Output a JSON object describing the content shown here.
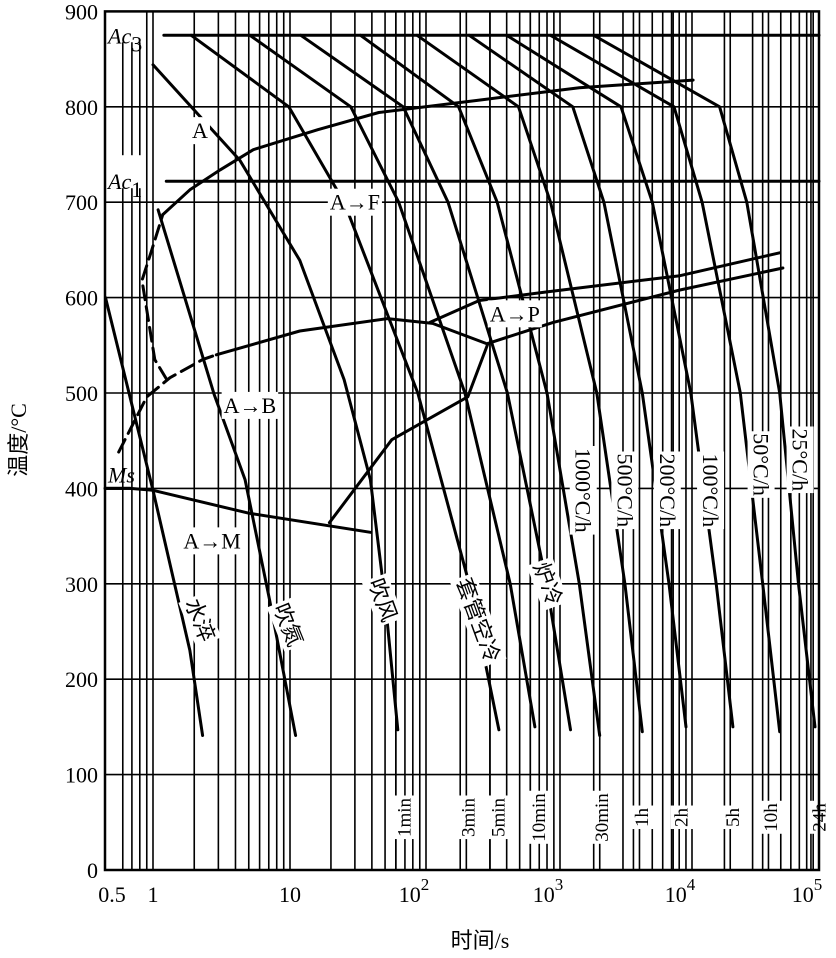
{
  "chart_data": {
    "type": "line",
    "title": "",
    "xlabel": "时间/s",
    "ylabel": "温度/°C",
    "xscale": "log",
    "xlim": [
      0.45,
      100000
    ],
    "ylim": [
      0,
      900
    ],
    "grid": true,
    "xticks": [
      {
        "value": 0.5,
        "label": "0.5",
        "sup": ""
      },
      {
        "value": 1,
        "label": "1",
        "sup": ""
      },
      {
        "value": 10,
        "label": "10",
        "sup": ""
      },
      {
        "value": 100,
        "label": "10",
        "sup": "2"
      },
      {
        "value": 1000,
        "label": "10",
        "sup": "3"
      },
      {
        "value": 10000,
        "label": "10",
        "sup": "4"
      },
      {
        "value": 100000,
        "label": "10",
        "sup": "5"
      }
    ],
    "yticks": [
      {
        "value": 0,
        "label": "0"
      },
      {
        "value": 100,
        "label": "100"
      },
      {
        "value": 200,
        "label": "200"
      },
      {
        "value": 300,
        "label": "300"
      },
      {
        "value": 400,
        "label": "400"
      },
      {
        "value": 500,
        "label": "500"
      },
      {
        "value": 600,
        "label": "600"
      },
      {
        "value": 700,
        "label": "700"
      },
      {
        "value": 800,
        "label": "800"
      },
      {
        "value": 900,
        "label": "900"
      }
    ],
    "time_markers": [
      {
        "value": 60,
        "label": "1min"
      },
      {
        "value": 180,
        "label": "3min"
      },
      {
        "value": 300,
        "label": "5min"
      },
      {
        "value": 600,
        "label": "10min"
      },
      {
        "value": 1800,
        "label": "30min"
      },
      {
        "value": 3600,
        "label": "1h"
      },
      {
        "value": 7200,
        "label": "2h"
      },
      {
        "value": 18000,
        "label": "5h"
      },
      {
        "value": 36000,
        "label": "10h"
      },
      {
        "value": 86400,
        "label": "24h"
      }
    ],
    "critical_temps": [
      {
        "name": "Ac3",
        "main": "Ac",
        "sub": "3",
        "value": 875,
        "from": 1.2
      },
      {
        "name": "Ac1",
        "main": "Ac",
        "sub": "1",
        "value": 722,
        "from": 1.25
      },
      {
        "name": "Ms",
        "main": "Ms",
        "sub": "",
        "value": 400,
        "from": 0.45
      }
    ],
    "cooling_curves": [
      {
        "name": "water-quench",
        "label": "水淬",
        "label_at": [
          2.2,
          262
        ],
        "rot": 68,
        "points": [
          [
            0.45,
            600
          ],
          [
            1,
            398
          ],
          [
            1.86,
            230
          ],
          [
            2.3,
            141
          ]
        ]
      },
      {
        "name": "nitrogen-blow",
        "label": "吹氮",
        "label_at": [
          9.7,
          257
        ],
        "rot": 68,
        "points": [
          [
            1.09,
            692
          ],
          [
            2.8,
            498
          ],
          [
            4.7,
            409
          ],
          [
            7.1,
            283
          ],
          [
            11,
            141
          ]
        ]
      },
      {
        "name": "air-blow",
        "label": "吹风",
        "label_at": [
          48,
          283
        ],
        "rot": 70,
        "points": [
          [
            1,
            844
          ],
          [
            4.3,
            744
          ],
          [
            11.8,
            639
          ],
          [
            25,
            514
          ],
          [
            39,
            409
          ],
          [
            50,
            283
          ],
          [
            62,
            147
          ]
        ]
      },
      {
        "name": "sleeve-air-cool",
        "label": "套管空冷",
        "label_at": [
          245,
          262
        ],
        "rot": 70,
        "points": [
          [
            1.9,
            875
          ],
          [
            9.8,
            800
          ],
          [
            25,
            700
          ],
          [
            87,
            500
          ],
          [
            210,
            300
          ],
          [
            350,
            147
          ]
        ]
      },
      {
        "name": "curve-unlabeled",
        "label": "",
        "label_at": null,
        "rot": 0,
        "points": [
          [
            5.1,
            875
          ],
          [
            28,
            800
          ],
          [
            63,
            700
          ],
          [
            195,
            500
          ],
          [
            425,
            300
          ],
          [
            650,
            150
          ]
        ]
      },
      {
        "name": "furnace-cool",
        "label": "炉冷",
        "label_at": [
          810,
          300
        ],
        "rot": 70,
        "points": [
          [
            12,
            875
          ],
          [
            68,
            800
          ],
          [
            146,
            700
          ],
          [
            405,
            500
          ],
          [
            795,
            300
          ],
          [
            1200,
            147
          ]
        ]
      },
      {
        "name": "rate-1000",
        "label": "1000°C/h",
        "label_at": [
          1500,
          398
        ],
        "rot": 90,
        "points": [
          [
            33,
            875
          ],
          [
            175,
            800
          ],
          [
            340,
            700
          ],
          [
            800,
            500
          ],
          [
            1400,
            300
          ],
          [
            2000,
            141
          ]
        ]
      },
      {
        "name": "rate-500",
        "label": "500°C/h",
        "label_at": [
          3100,
          398
        ],
        "rot": 90,
        "points": [
          [
            86,
            875
          ],
          [
            490,
            800
          ],
          [
            850,
            700
          ],
          [
            1900,
            500
          ],
          [
            3100,
            300
          ],
          [
            4200,
            145
          ]
        ]
      },
      {
        "name": "rate-200",
        "label": "200°C/h",
        "label_at": [
          6500,
          398
        ],
        "rot": 90,
        "points": [
          [
            210,
            875
          ],
          [
            1250,
            800
          ],
          [
            2150,
            700
          ],
          [
            4200,
            500
          ],
          [
            6700,
            300
          ],
          [
            9000,
            150
          ]
        ]
      },
      {
        "name": "rate-100",
        "label": "100°C/h",
        "label_at": [
          14000,
          398
        ],
        "rot": 90,
        "points": [
          [
            400,
            875
          ],
          [
            2900,
            800
          ],
          [
            5000,
            700
          ],
          [
            9800,
            500
          ],
          [
            15500,
            300
          ],
          [
            21000,
            150
          ]
        ]
      },
      {
        "name": "rate-50",
        "label": "50°C/h",
        "label_at": [
          35000,
          425
        ],
        "rot": 90,
        "points": [
          [
            850,
            875
          ],
          [
            7300,
            800
          ],
          [
            12000,
            700
          ],
          [
            24000,
            500
          ],
          [
            36000,
            300
          ],
          [
            49000,
            145
          ]
        ]
      },
      {
        "name": "rate-25",
        "label": "25°C/h",
        "label_at": [
          71000,
          430
        ],
        "rot": 90,
        "points": [
          [
            1800,
            875
          ],
          [
            16500,
            800
          ],
          [
            27000,
            700
          ],
          [
            49000,
            500
          ],
          [
            69000,
            300
          ],
          [
            93000,
            150
          ]
        ]
      }
    ],
    "transformation_lines": [
      {
        "name": "ferrite-start",
        "dashed_until": 4,
        "points": [
          [
            1.26,
            514
          ],
          [
            1.03,
            535
          ],
          [
            0.83,
            618
          ],
          [
            0.98,
            650
          ],
          [
            1.18,
            687
          ],
          [
            1.86,
            713
          ],
          [
            3.1,
            734
          ],
          [
            5.4,
            755
          ],
          [
            16,
            776
          ],
          [
            45,
            794
          ],
          [
            250,
            807
          ],
          [
            1400,
            820
          ],
          [
            10200,
            828
          ]
        ]
      },
      {
        "name": "bainite-start",
        "dashed_until": 4,
        "points": [
          [
            0.56,
            438
          ],
          [
            0.9,
            496
          ],
          [
            1.33,
            516
          ],
          [
            2.3,
            535
          ],
          [
            2.9,
            540
          ],
          [
            11.8,
            565
          ],
          [
            52,
            578
          ],
          [
            112,
            573
          ],
          [
            280,
            552
          ]
        ]
      },
      {
        "name": "martensite-start",
        "dashed_until": 0,
        "points": [
          [
            0.45,
            400
          ],
          [
            0.68,
            400
          ],
          [
            1,
            398
          ],
          [
            5,
            374
          ],
          [
            39,
            354
          ]
        ]
      },
      {
        "name": "bainite-finish",
        "dashed_until": 0,
        "points": [
          [
            19.5,
            364
          ],
          [
            56,
            451
          ],
          [
            205,
            496
          ],
          [
            290,
            552
          ]
        ]
      },
      {
        "name": "pearlite-start",
        "dashed_until": 0,
        "points": [
          [
            107,
            574
          ],
          [
            250,
            597
          ],
          [
            800,
            606
          ],
          [
            8100,
            623
          ],
          [
            49000,
            647
          ]
        ]
      },
      {
        "name": "pearlite-finish",
        "dashed_until": 0,
        "points": [
          [
            290,
            552
          ],
          [
            890,
            574
          ],
          [
            8100,
            608
          ],
          [
            52000,
            631
          ]
        ]
      }
    ],
    "region_labels": [
      {
        "name": "austenite",
        "text": "A",
        "at": [
          2.2,
          775
        ]
      },
      {
        "name": "a-to-f",
        "text": "A→F",
        "at": [
          30,
          700
        ]
      },
      {
        "name": "a-to-p",
        "text": "A→P",
        "at": [
          460,
          583
        ]
      },
      {
        "name": "a-to-b",
        "text": "A→B",
        "at": [
          5.1,
          487
        ]
      },
      {
        "name": "a-to-m",
        "text": "A→M",
        "at": [
          2.7,
          345
        ]
      }
    ]
  }
}
